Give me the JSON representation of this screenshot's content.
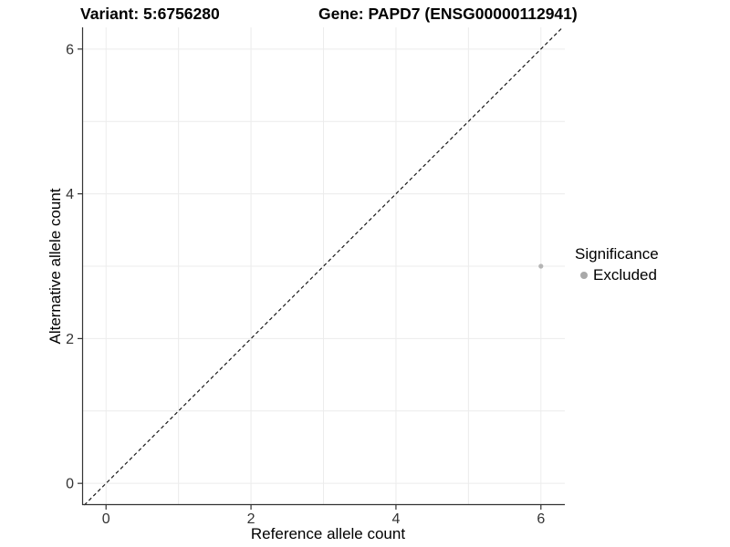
{
  "header": {
    "variant_title": "Variant: 5:6756280",
    "gene_title": "Gene: PAPD7 (ENSG00000112941)"
  },
  "legend": {
    "title": "Significance",
    "items": [
      {
        "label": "Excluded",
        "color": "#a9a9a9"
      }
    ]
  },
  "chart_data": {
    "type": "scatter",
    "title": "Variant: 5:6756280  Gene: PAPD7 (ENSG00000112941)",
    "xlabel": "Reference allele count",
    "ylabel": "Alternative allele count",
    "xlim": [
      -0.33,
      6.33
    ],
    "ylim": [
      -0.3,
      6.3
    ],
    "x_ticks": [
      0,
      2,
      4,
      6
    ],
    "y_ticks": [
      0,
      2,
      4,
      6
    ],
    "x_grid": [
      0,
      1,
      2,
      3,
      4,
      5,
      6
    ],
    "y_grid": [
      0,
      1,
      2,
      3,
      4,
      5,
      6
    ],
    "grid_on": true,
    "legend_position": "right",
    "series": [
      {
        "name": "Excluded",
        "points": [
          {
            "x": 6,
            "y": 3
          }
        ],
        "color": "#b5b5b5"
      }
    ],
    "identity_line": {
      "slope": 1,
      "intercept": 0,
      "style": "dashed",
      "color": "#1a1a1a"
    },
    "colors": {
      "grid": "#ececec",
      "axis": "#333333",
      "tick_text": "#333333"
    }
  }
}
